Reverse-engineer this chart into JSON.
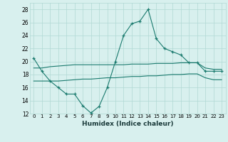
{
  "x": [
    0,
    1,
    2,
    3,
    4,
    5,
    6,
    7,
    8,
    9,
    10,
    11,
    12,
    13,
    14,
    15,
    16,
    17,
    18,
    19,
    20,
    21,
    22,
    23
  ],
  "y_main": [
    20.5,
    18.5,
    17.0,
    16.0,
    15.0,
    15.0,
    13.2,
    12.1,
    13.1,
    16.0,
    20.0,
    24.0,
    25.8,
    26.2,
    28.0,
    23.5,
    22.0,
    21.5,
    21.0,
    19.8,
    19.8,
    18.5,
    18.5,
    18.5
  ],
  "y_upper": [
    19.0,
    19.0,
    19.2,
    19.3,
    19.4,
    19.5,
    19.5,
    19.5,
    19.5,
    19.5,
    19.5,
    19.5,
    19.6,
    19.6,
    19.6,
    19.7,
    19.7,
    19.7,
    19.8,
    19.8,
    19.8,
    19.0,
    18.8,
    18.8
  ],
  "y_lower": [
    17.0,
    17.0,
    17.0,
    17.0,
    17.1,
    17.2,
    17.3,
    17.3,
    17.4,
    17.5,
    17.5,
    17.6,
    17.7,
    17.7,
    17.8,
    17.8,
    17.9,
    18.0,
    18.0,
    18.1,
    18.1,
    17.5,
    17.2,
    17.2
  ],
  "line_color": "#1a7a6e",
  "bg_color": "#d8f0ee",
  "grid_color": "#b0d8d4",
  "xlabel": "Humidex (Indice chaleur)",
  "ylim": [
    12,
    29
  ],
  "xlim": [
    -0.5,
    23.5
  ],
  "yticks": [
    12,
    14,
    16,
    18,
    20,
    22,
    24,
    26,
    28
  ],
  "xticks": [
    0,
    1,
    2,
    3,
    4,
    5,
    6,
    7,
    8,
    9,
    10,
    11,
    12,
    13,
    14,
    15,
    16,
    17,
    18,
    19,
    20,
    21,
    22,
    23
  ]
}
